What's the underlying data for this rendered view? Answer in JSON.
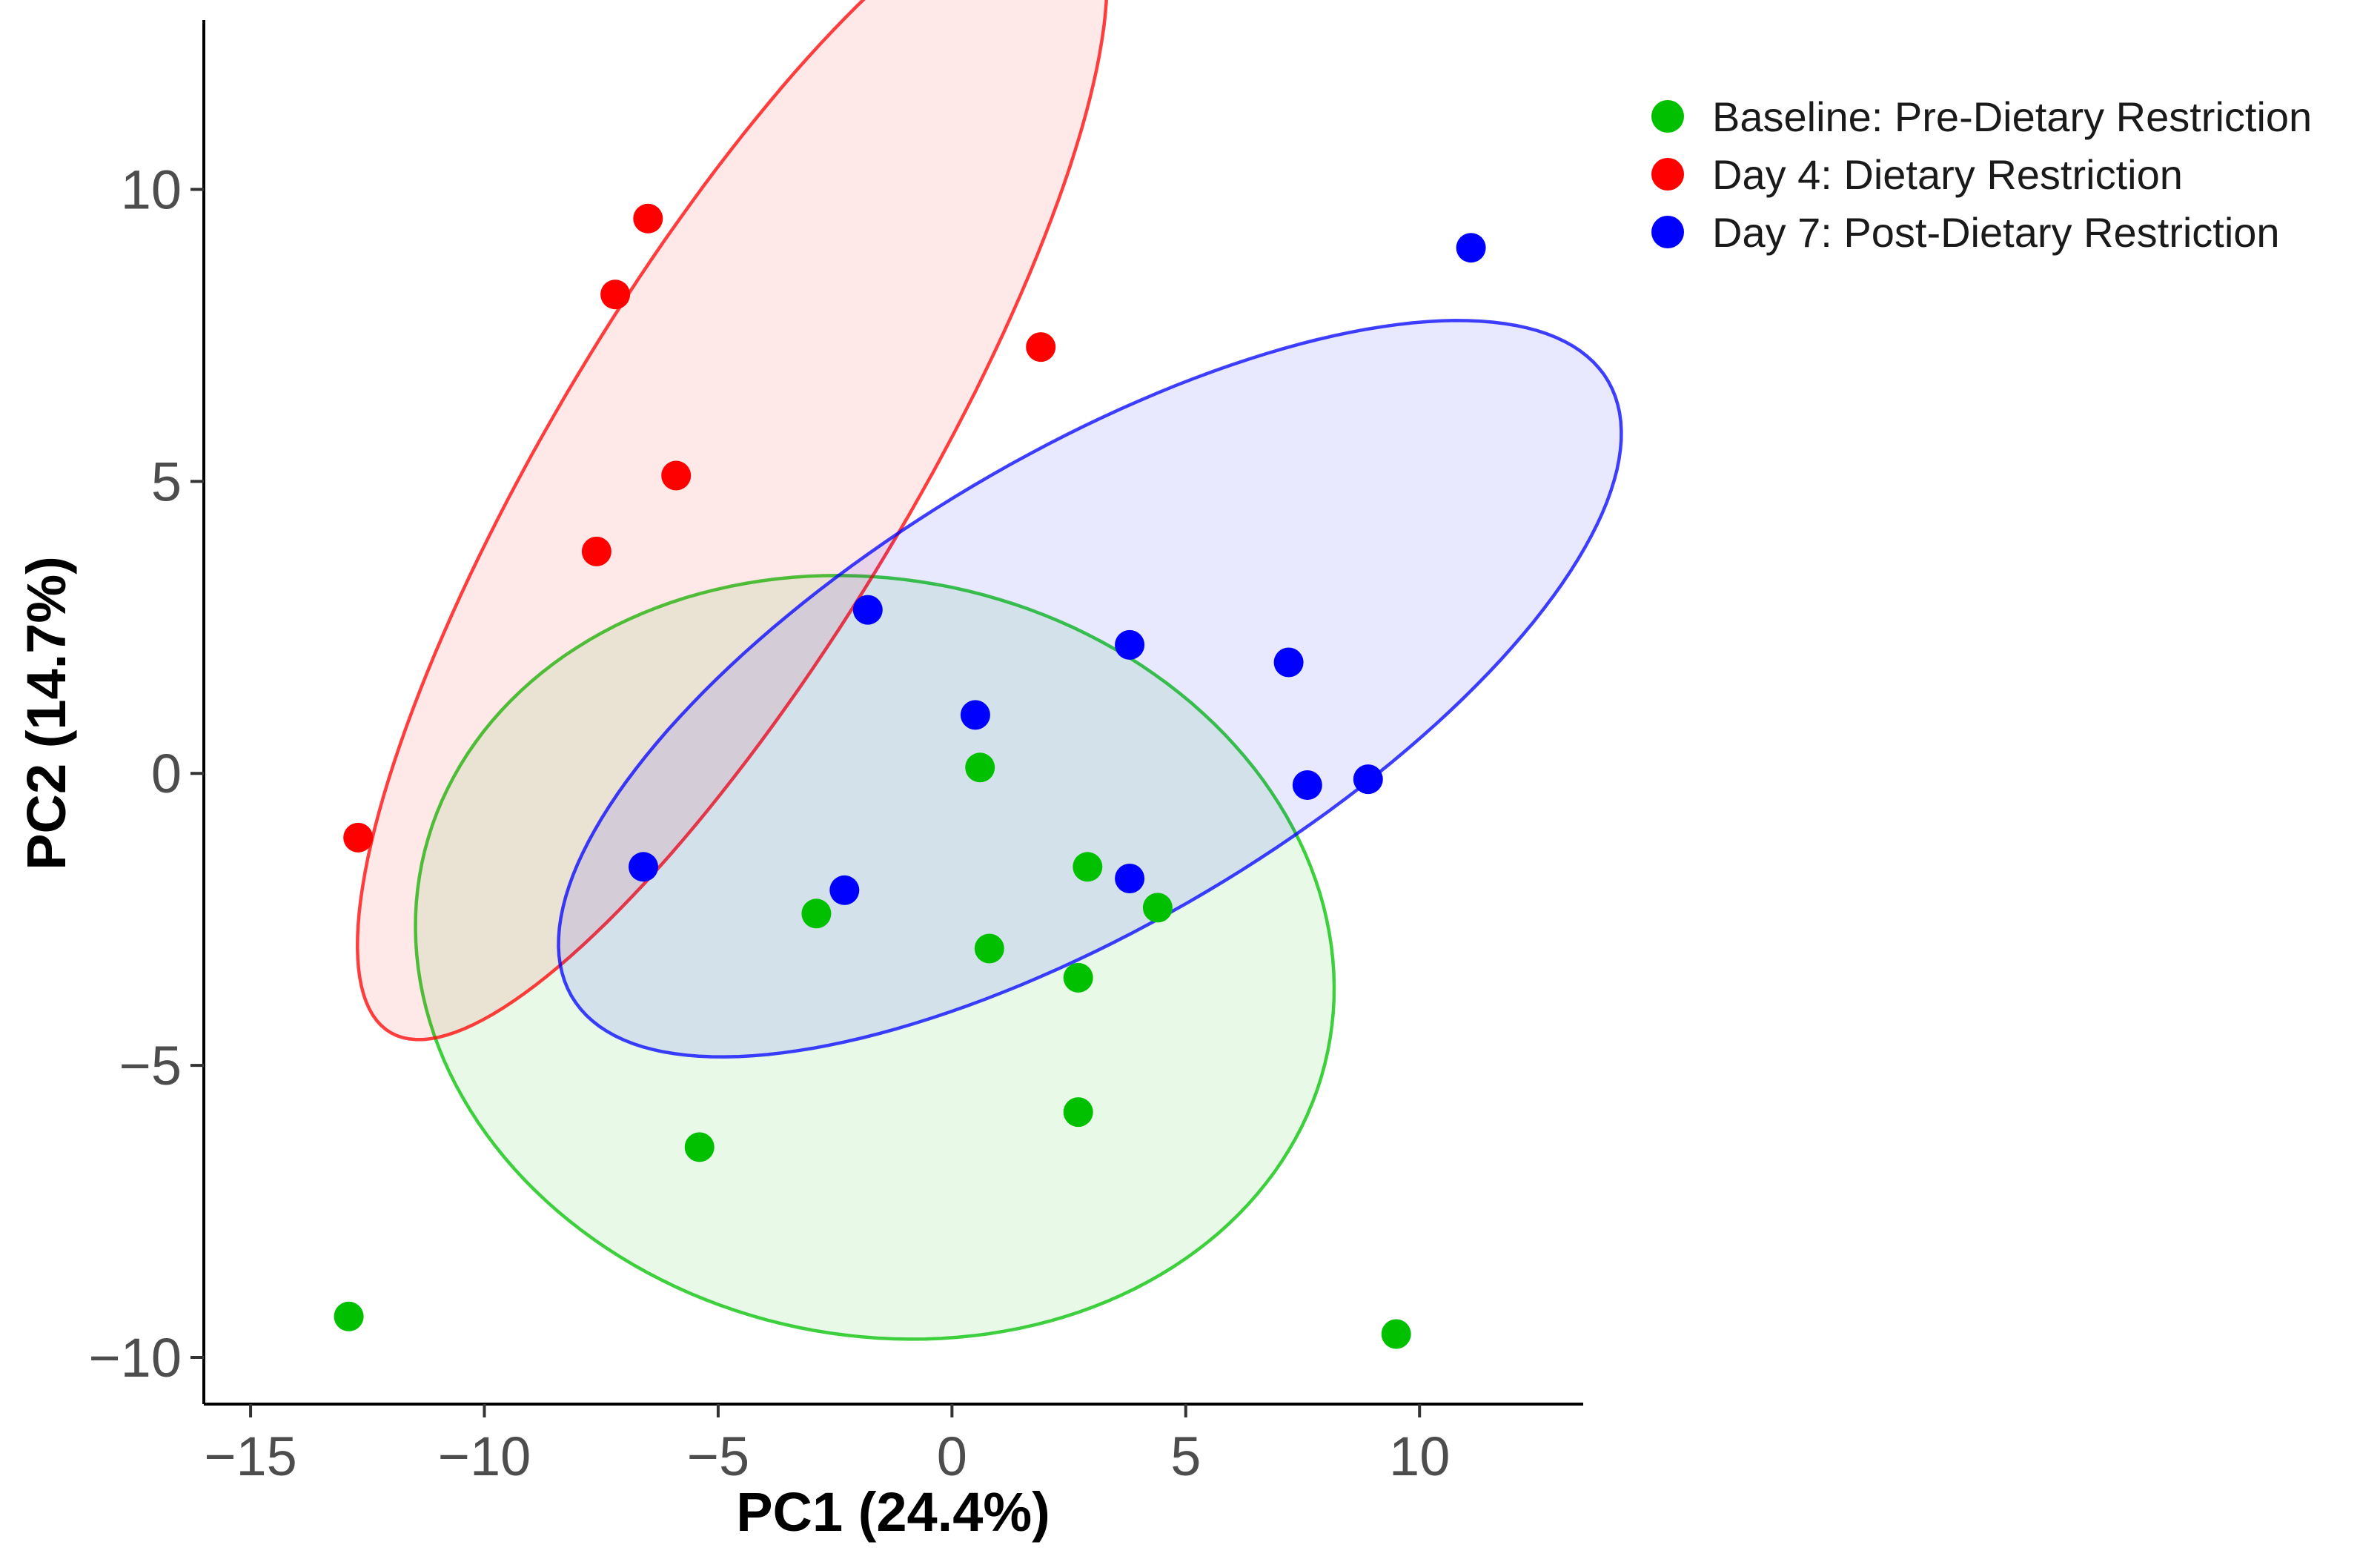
{
  "chart_data": {
    "type": "scatter",
    "title": "",
    "xlabel": "PC1 (24.4%)",
    "ylabel": "PC2 (14.7%)",
    "xlim": [
      -16,
      13.5
    ],
    "ylim": [
      -10.8,
      12.9
    ],
    "x_ticks": [
      -15,
      -10,
      -5,
      0,
      5,
      10
    ],
    "y_ticks": [
      -10,
      -5,
      0,
      5,
      10
    ],
    "x_tick_labels": [
      "−15",
      "−10",
      "−5",
      "0",
      "5",
      "10"
    ],
    "y_tick_labels": [
      "−10",
      "−5",
      "0",
      "5",
      "10"
    ],
    "grid": false,
    "legend_position": "top-right",
    "series": [
      {
        "name": "Baseline: Pre-Dietary Restriction",
        "color": "#00c000",
        "points": [
          {
            "x": 0.6,
            "y": 0.1
          },
          {
            "x": 2.9,
            "y": -1.6
          },
          {
            "x": 4.4,
            "y": -2.3
          },
          {
            "x": -2.9,
            "y": -2.4
          },
          {
            "x": 0.8,
            "y": -3.0
          },
          {
            "x": 2.7,
            "y": -3.5
          },
          {
            "x": 2.7,
            "y": -5.8
          },
          {
            "x": -5.4,
            "y": -6.4
          },
          {
            "x": -12.9,
            "y": -9.3
          },
          {
            "x": 9.5,
            "y": -9.6
          }
        ],
        "ellipse": {
          "cx": -1.65,
          "cy": -3.15,
          "rx": 9.85,
          "ry": 6.5,
          "angle_deg": -5.5
        }
      },
      {
        "name": "Day 4: Dietary Restriction",
        "color": "#ff0000",
        "points": [
          {
            "x": -6.5,
            "y": 9.5
          },
          {
            "x": -7.2,
            "y": 8.2
          },
          {
            "x": 1.9,
            "y": 7.3
          },
          {
            "x": -5.9,
            "y": 5.1
          },
          {
            "x": -7.6,
            "y": 3.8
          },
          {
            "x": -12.7,
            "y": -1.1
          }
        ],
        "ellipse": {
          "cx": -4.7,
          "cy": 5.3,
          "rx": 12.2,
          "ry": 3.55,
          "angle_deg": 52
        }
      },
      {
        "name": "Day 7: Post-Dietary Restriction",
        "color": "#0000ff",
        "points": [
          {
            "x": 11.1,
            "y": 9.0
          },
          {
            "x": -1.8,
            "y": 2.8
          },
          {
            "x": 3.8,
            "y": 2.2
          },
          {
            "x": 7.2,
            "y": 1.9
          },
          {
            "x": 0.5,
            "y": 1.0
          },
          {
            "x": 7.6,
            "y": -0.2
          },
          {
            "x": 8.9,
            "y": -0.1
          },
          {
            "x": -6.6,
            "y": -1.6
          },
          {
            "x": -2.3,
            "y": -2.0
          },
          {
            "x": 3.8,
            "y": -1.8
          }
        ],
        "ellipse": {
          "cx": 2.95,
          "cy": 1.45,
          "rx": 12.3,
          "ry": 4.2,
          "angle_deg": 24
        }
      }
    ]
  }
}
